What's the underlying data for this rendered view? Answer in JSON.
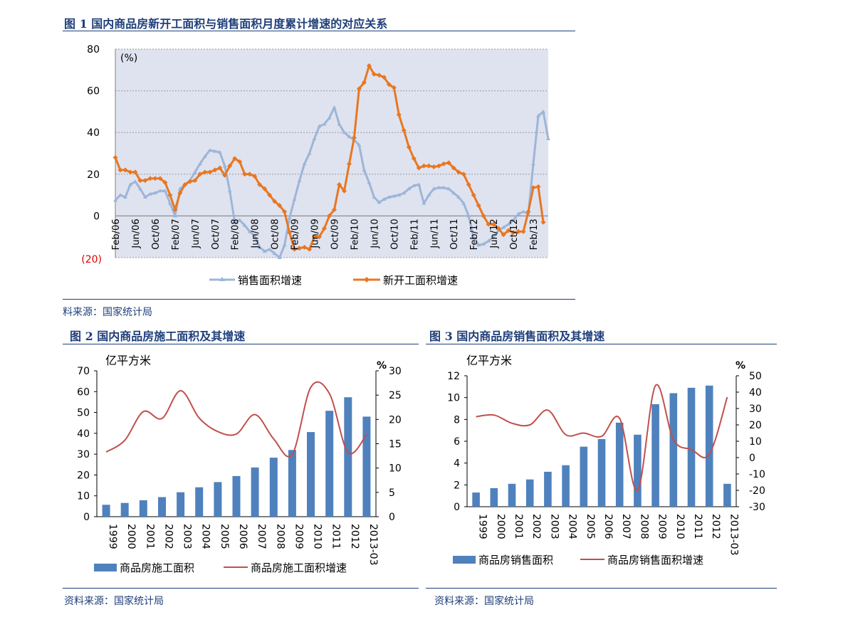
{
  "fig1": {
    "title": "图 1  国内商品房新开工面积与销售面积月度累计增速的对应关系",
    "source": "料来源：国家统计局",
    "chart_data": {
      "type": "line",
      "unit_label": "(%)",
      "ylim": [
        -20,
        80
      ],
      "y_ticks": [
        "(20)",
        "0",
        "20",
        "40",
        "60",
        "80"
      ],
      "x_ticks": [
        "Feb/06",
        "Jun/06",
        "Oct/06",
        "Feb/07",
        "Jun/07",
        "Oct/07",
        "Feb/08",
        "Jun/08",
        "Oct/08",
        "Feb/09",
        "Jun/09",
        "Oct/09",
        "Feb/10",
        "Jun/10",
        "Oct/10",
        "Feb/11",
        "Jun/11",
        "Oct/11",
        "Feb/12",
        "Jun/12",
        "Oct/12",
        "Feb/13"
      ],
      "series": [
        {
          "name": "销售面积增速",
          "color": "#9db5d8",
          "values": [
            7.5,
            10,
            9,
            15,
            16.5,
            13,
            9,
            10.5,
            11,
            12,
            12,
            6,
            0,
            13,
            15,
            17,
            21,
            25,
            28.5,
            31.5,
            31,
            30.5,
            24,
            12,
            -3,
            -2,
            -4.5,
            -7.5,
            -9.5,
            -15,
            -17,
            -16,
            -18,
            -20,
            -14,
            -1,
            8,
            17,
            25,
            30,
            37,
            43,
            44,
            47,
            52,
            44,
            40,
            38,
            36.5,
            34,
            22,
            16,
            9,
            6.5,
            8,
            9,
            9.5,
            10,
            11,
            13,
            14.5,
            15,
            6,
            10,
            13,
            13.5,
            13.5,
            13,
            11,
            9,
            6,
            0,
            -10.5,
            -14,
            -13.5,
            -12,
            -10,
            -7,
            -5.5,
            -4,
            -2,
            1,
            2,
            1,
            25,
            48,
            50,
            37
          ]
        },
        {
          "name": "新开工面积增速",
          "color": "#e87722",
          "values": [
            28,
            22,
            22,
            21,
            21,
            17,
            17,
            18,
            18,
            18,
            16,
            10,
            3,
            11,
            15,
            16.5,
            17,
            20,
            21,
            21,
            22,
            23,
            19.5,
            24,
            27.5,
            26,
            20,
            20,
            19,
            15,
            13,
            10,
            7,
            5,
            2,
            -8,
            -16,
            -15.5,
            -15,
            -16,
            -10,
            -10,
            -6,
            0,
            3,
            15,
            12,
            25,
            37.5,
            61,
            64,
            72,
            68,
            67.5,
            66.5,
            63,
            61.5,
            48.5,
            41,
            33,
            27.5,
            23,
            24,
            24,
            23.5,
            24,
            25,
            25.5,
            23,
            21,
            20,
            15,
            10,
            5,
            0,
            -4,
            -4,
            -6,
            -9,
            -7,
            -8,
            -7.5,
            -7.5,
            2,
            13.5,
            14,
            -3
          ]
        }
      ]
    }
  },
  "fig2": {
    "title": "图 2 国内商品房施工面积及其增速",
    "source": "资料来源：国家统计局",
    "chart_data": {
      "type": "bar",
      "left_unit": "亿平方米",
      "right_unit": "%",
      "categories": [
        "1999",
        "2000",
        "2001",
        "2002",
        "2003",
        "2004",
        "2005",
        "2006",
        "2007",
        "2008",
        "2009",
        "2010",
        "2011",
        "2012",
        "2013-03"
      ],
      "ylim_left": [
        0,
        70
      ],
      "ylim_right": [
        0,
        30
      ],
      "left_ticks": [
        "0",
        "10",
        "20",
        "30",
        "40",
        "50",
        "60",
        "70"
      ],
      "right_ticks": [
        "0",
        "5",
        "10",
        "15",
        "20",
        "25",
        "30"
      ],
      "series": [
        {
          "name": "商品房施工面积",
          "type": "bar",
          "axis": "left",
          "color": "#4f81bd",
          "values": [
            5.7,
            6.6,
            7.9,
            9.4,
            11.7,
            14.1,
            16.6,
            19.5,
            23.6,
            28.3,
            32.0,
            40.6,
            50.8,
            57.3,
            48.0
          ]
        },
        {
          "name": "商品房施工面积增速",
          "type": "line",
          "axis": "right",
          "color": "#c0504d",
          "values": [
            13.3,
            15.7,
            21.6,
            20.2,
            25.9,
            20.3,
            17.5,
            17.0,
            21.0,
            16.0,
            12.8,
            26.6,
            25.3,
            13.2,
            16.9
          ]
        }
      ]
    }
  },
  "fig3": {
    "title": "图 3 国内商品房销售面积及其增速",
    "source": "资料来源：国家统计局",
    "chart_data": {
      "type": "bar",
      "left_unit": "亿平方米",
      "right_unit": "%",
      "categories": [
        "1999",
        "2000",
        "2001",
        "2002",
        "2003",
        "2004",
        "2005",
        "2006",
        "2007",
        "2008",
        "2009",
        "2010",
        "2011",
        "2012",
        "2013-03"
      ],
      "ylim_left": [
        0,
        12
      ],
      "ylim_right": [
        -30,
        50
      ],
      "left_ticks": [
        "0",
        "2",
        "4",
        "6",
        "8",
        "10",
        "12"
      ],
      "right_ticks": [
        "-30",
        "-20",
        "-10",
        "0",
        "10",
        "20",
        "30",
        "40",
        "50"
      ],
      "series": [
        {
          "name": "商品房销售面积",
          "type": "bar",
          "axis": "left",
          "color": "#4f81bd",
          "values": [
            1.3,
            1.7,
            2.1,
            2.5,
            3.2,
            3.8,
            5.5,
            6.2,
            7.7,
            6.6,
            9.4,
            10.4,
            10.9,
            11.1,
            2.1
          ]
        },
        {
          "name": "商品房销售面积增速",
          "type": "line",
          "axis": "right",
          "color": "#c0504d",
          "values": [
            25,
            26,
            21,
            20,
            29,
            14,
            15,
            13,
            24,
            -20,
            44,
            11,
            5,
            2,
            37
          ]
        }
      ]
    }
  }
}
